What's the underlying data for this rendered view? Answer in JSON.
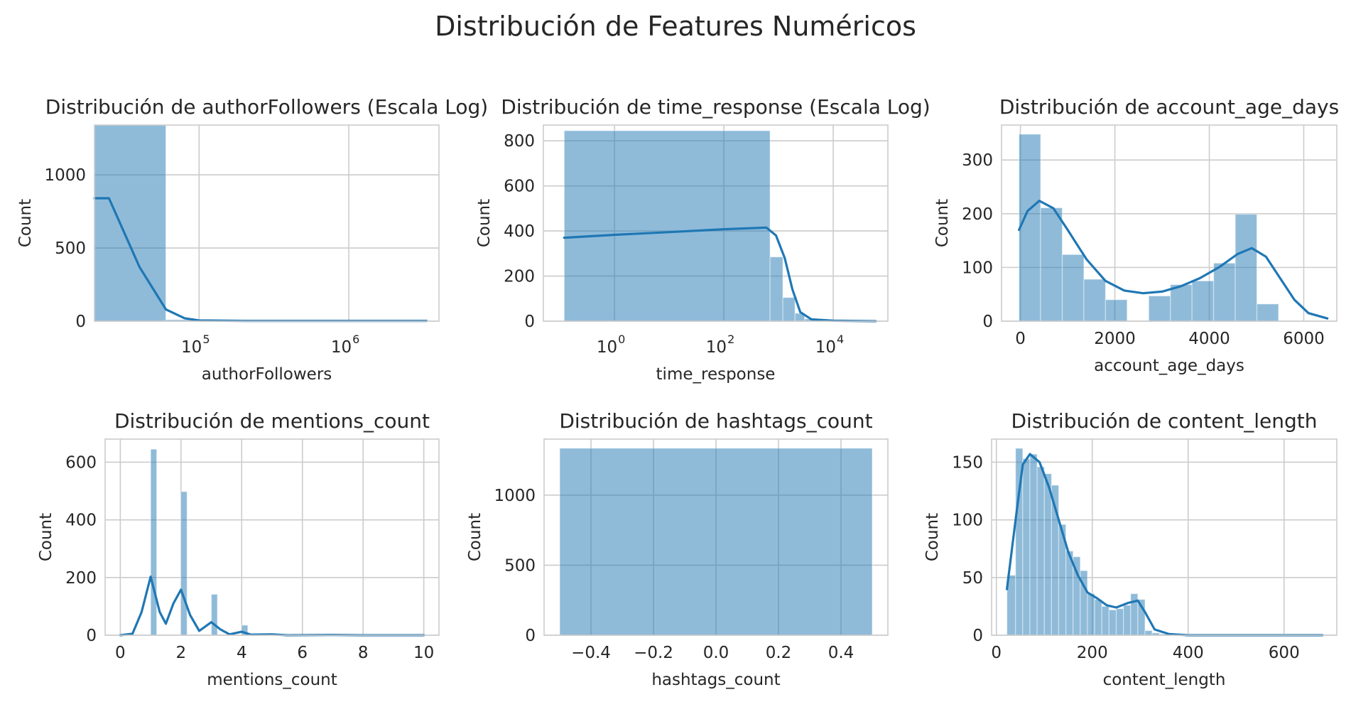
{
  "figure": {
    "suptitle": "Distribución de Features Numéricos"
  },
  "colors": {
    "bar": "#1f77b4",
    "kde": "#1f77b4",
    "grid": "#cccccc"
  },
  "chart_data": [
    {
      "type": "histogram",
      "title": "Distribución de authorFollowers (Escala Log)",
      "xlabel": "authorFollowers",
      "ylabel": "Count",
      "xscale": "log",
      "xlim": [
        20000,
        4000000
      ],
      "ylim": [
        0,
        1340
      ],
      "xticks": [
        {
          "value": 100000,
          "base": "10",
          "exp": "5"
        },
        {
          "value": 1000000,
          "base": "10",
          "exp": "6"
        }
      ],
      "yticks": [
        0,
        500,
        1000
      ],
      "bins": [
        {
          "x0": 20000,
          "x1": 60000,
          "count": 1340
        },
        {
          "x0": 60000,
          "x1": 100000,
          "count": 10
        },
        {
          "x0": 100000,
          "x1": 300000,
          "count": 3
        },
        {
          "x0": 300000,
          "x1": 1000000,
          "count": 2
        },
        {
          "x0": 1000000,
          "x1": 3300000,
          "count": 2
        }
      ],
      "kde": [
        [
          20000,
          840
        ],
        [
          25000,
          840
        ],
        [
          40000,
          370
        ],
        [
          60000,
          80
        ],
        [
          80000,
          20
        ],
        [
          100000,
          5
        ],
        [
          200000,
          2
        ],
        [
          1000000,
          2
        ],
        [
          3300000,
          2
        ]
      ],
      "grid": true
    },
    {
      "type": "histogram",
      "title": "Distribución de time_response (Escala Log)",
      "xlabel": "time_response",
      "ylabel": "Count",
      "xscale": "log",
      "xlim": [
        0.05,
        100000
      ],
      "ylim": [
        0,
        870
      ],
      "xticks": [
        {
          "value": 1,
          "base": "10",
          "exp": "0"
        },
        {
          "value": 100,
          "base": "10",
          "exp": "2"
        },
        {
          "value": 10000,
          "base": "10",
          "exp": "4"
        }
      ],
      "yticks": [
        0,
        200,
        400,
        600,
        800
      ],
      "bins": [
        {
          "x0": 0.12,
          "x1": 700,
          "count": 845
        },
        {
          "x0": 700,
          "x1": 1200,
          "count": 285
        },
        {
          "x0": 1200,
          "x1": 2000,
          "count": 105
        },
        {
          "x0": 2000,
          "x1": 3000,
          "count": 35
        },
        {
          "x0": 3000,
          "x1": 5000,
          "count": 10
        },
        {
          "x0": 5000,
          "x1": 60000,
          "count": 2
        }
      ],
      "kde": [
        [
          0.12,
          370
        ],
        [
          1,
          383
        ],
        [
          10,
          395
        ],
        [
          100,
          408
        ],
        [
          600,
          415
        ],
        [
          900,
          380
        ],
        [
          1300,
          280
        ],
        [
          1800,
          140
        ],
        [
          2500,
          40
        ],
        [
          4000,
          8
        ],
        [
          10000,
          2
        ],
        [
          60000,
          0
        ]
      ],
      "grid": true
    },
    {
      "type": "histogram",
      "title": "Distribución de account_age_days",
      "xlabel": "account_age_days",
      "ylabel": "Count",
      "xlim": [
        -400,
        6700
      ],
      "ylim": [
        0,
        365
      ],
      "xticks": [
        {
          "value": 0,
          "label": "0"
        },
        {
          "value": 2000,
          "label": "2000"
        },
        {
          "value": 4000,
          "label": "4000"
        },
        {
          "value": 6000,
          "label": "6000"
        }
      ],
      "yticks": [
        0,
        100,
        200,
        300
      ],
      "bins": [
        {
          "x0": -30,
          "x1": 428,
          "count": 348
        },
        {
          "x0": 428,
          "x1": 886,
          "count": 211
        },
        {
          "x0": 886,
          "x1": 1344,
          "count": 124
        },
        {
          "x0": 1344,
          "x1": 1802,
          "count": 78
        },
        {
          "x0": 1802,
          "x1": 2260,
          "count": 40
        },
        {
          "x0": 2260,
          "x1": 2718,
          "count": 0
        },
        {
          "x0": 2718,
          "x1": 3176,
          "count": 47
        },
        {
          "x0": 3176,
          "x1": 3634,
          "count": 68
        },
        {
          "x0": 3634,
          "x1": 4092,
          "count": 75
        },
        {
          "x0": 4092,
          "x1": 4550,
          "count": 108
        },
        {
          "x0": 4550,
          "x1": 5008,
          "count": 199
        },
        {
          "x0": 5008,
          "x1": 5466,
          "count": 32
        }
      ],
      "kde": [
        [
          -30,
          170
        ],
        [
          150,
          205
        ],
        [
          400,
          224
        ],
        [
          700,
          210
        ],
        [
          1000,
          170
        ],
        [
          1400,
          115
        ],
        [
          1800,
          75
        ],
        [
          2200,
          57
        ],
        [
          2600,
          52
        ],
        [
          3000,
          55
        ],
        [
          3400,
          65
        ],
        [
          3800,
          80
        ],
        [
          4200,
          100
        ],
        [
          4600,
          125
        ],
        [
          4900,
          136
        ],
        [
          5200,
          120
        ],
        [
          5500,
          80
        ],
        [
          5800,
          40
        ],
        [
          6100,
          15
        ],
        [
          6500,
          5
        ]
      ],
      "grid": true
    },
    {
      "type": "histogram",
      "title": "Distribución de mentions_count",
      "xlabel": "mentions_count",
      "ylabel": "Count",
      "xlim": [
        -0.5,
        10.5
      ],
      "ylim": [
        0,
        680
      ],
      "xticks": [
        {
          "value": 0,
          "label": "0"
        },
        {
          "value": 2,
          "label": "2"
        },
        {
          "value": 4,
          "label": "4"
        },
        {
          "value": 6,
          "label": "6"
        },
        {
          "value": 8,
          "label": "8"
        },
        {
          "value": 10,
          "label": "10"
        }
      ],
      "yticks": [
        0,
        200,
        400,
        600
      ],
      "bins": [
        {
          "x0": 1.0,
          "x1": 1.2,
          "count": 645
        },
        {
          "x0": 2.0,
          "x1": 2.2,
          "count": 498
        },
        {
          "x0": 3.0,
          "x1": 3.2,
          "count": 142
        },
        {
          "x0": 4.0,
          "x1": 4.2,
          "count": 35
        },
        {
          "x0": 5.0,
          "x1": 5.2,
          "count": 5
        },
        {
          "x0": 7.0,
          "x1": 7.2,
          "count": 2
        }
      ],
      "kde": [
        [
          0,
          0
        ],
        [
          0.4,
          5
        ],
        [
          0.7,
          80
        ],
        [
          1.0,
          203
        ],
        [
          1.3,
          80
        ],
        [
          1.5,
          40
        ],
        [
          1.75,
          110
        ],
        [
          2.0,
          158
        ],
        [
          2.3,
          70
        ],
        [
          2.6,
          15
        ],
        [
          3.0,
          45
        ],
        [
          3.3,
          20
        ],
        [
          3.6,
          3
        ],
        [
          4.0,
          12
        ],
        [
          4.3,
          2
        ],
        [
          5.0,
          3
        ],
        [
          5.5,
          0
        ],
        [
          7.0,
          1
        ],
        [
          8.0,
          0
        ],
        [
          10.0,
          0
        ]
      ],
      "grid": true
    },
    {
      "type": "histogram",
      "title": "Distribución de hashtags_count",
      "xlabel": "hashtags_count",
      "ylabel": "Count",
      "xlim": [
        -0.55,
        0.55
      ],
      "ylim": [
        0,
        1400
      ],
      "xticks": [
        {
          "value": -0.4,
          "label": "−0.4"
        },
        {
          "value": -0.2,
          "label": "−0.2"
        },
        {
          "value": 0,
          "label": "0.0"
        },
        {
          "value": 0.2,
          "label": "0.2"
        },
        {
          "value": 0.4,
          "label": "0.4"
        }
      ],
      "yticks": [
        0,
        500,
        1000
      ],
      "bins": [
        {
          "x0": -0.5,
          "x1": 0.5,
          "count": 1335
        }
      ],
      "kde": [],
      "grid": true
    },
    {
      "type": "histogram",
      "title": "Distribución de content_length",
      "xlabel": "content_length",
      "ylabel": "Count",
      "xlim": [
        -10,
        710
      ],
      "ylim": [
        0,
        170
      ],
      "xticks": [
        {
          "value": 0,
          "label": "0"
        },
        {
          "value": 200,
          "label": "200"
        },
        {
          "value": 400,
          "label": "400"
        },
        {
          "value": 600,
          "label": "600"
        }
      ],
      "yticks": [
        0,
        50,
        100,
        150
      ],
      "bins": [
        {
          "x0": 22,
          "x1": 40,
          "count": 52
        },
        {
          "x0": 40,
          "x1": 55,
          "count": 162
        },
        {
          "x0": 55,
          "x1": 70,
          "count": 153
        },
        {
          "x0": 70,
          "x1": 85,
          "count": 157
        },
        {
          "x0": 85,
          "x1": 100,
          "count": 146
        },
        {
          "x0": 100,
          "x1": 115,
          "count": 140
        },
        {
          "x0": 115,
          "x1": 130,
          "count": 130
        },
        {
          "x0": 130,
          "x1": 145,
          "count": 96
        },
        {
          "x0": 145,
          "x1": 160,
          "count": 73
        },
        {
          "x0": 160,
          "x1": 175,
          "count": 68
        },
        {
          "x0": 175,
          "x1": 190,
          "count": 56
        },
        {
          "x0": 190,
          "x1": 205,
          "count": 36
        },
        {
          "x0": 205,
          "x1": 220,
          "count": 31
        },
        {
          "x0": 220,
          "x1": 235,
          "count": 25
        },
        {
          "x0": 235,
          "x1": 250,
          "count": 22
        },
        {
          "x0": 250,
          "x1": 265,
          "count": 23
        },
        {
          "x0": 265,
          "x1": 280,
          "count": 26
        },
        {
          "x0": 280,
          "x1": 295,
          "count": 36
        },
        {
          "x0": 295,
          "x1": 310,
          "count": 31
        },
        {
          "x0": 310,
          "x1": 325,
          "count": 4
        },
        {
          "x0": 325,
          "x1": 340,
          "count": 2
        },
        {
          "x0": 340,
          "x1": 680,
          "count": 1
        }
      ],
      "kde": [
        [
          22,
          40
        ],
        [
          40,
          100
        ],
        [
          55,
          148
        ],
        [
          70,
          157
        ],
        [
          90,
          150
        ],
        [
          110,
          128
        ],
        [
          130,
          100
        ],
        [
          150,
          72
        ],
        [
          170,
          52
        ],
        [
          190,
          37
        ],
        [
          210,
          32
        ],
        [
          230,
          26
        ],
        [
          250,
          24
        ],
        [
          275,
          28
        ],
        [
          295,
          30
        ],
        [
          310,
          20
        ],
        [
          330,
          5
        ],
        [
          360,
          1
        ],
        [
          400,
          0
        ],
        [
          680,
          0
        ]
      ],
      "grid": true
    }
  ]
}
